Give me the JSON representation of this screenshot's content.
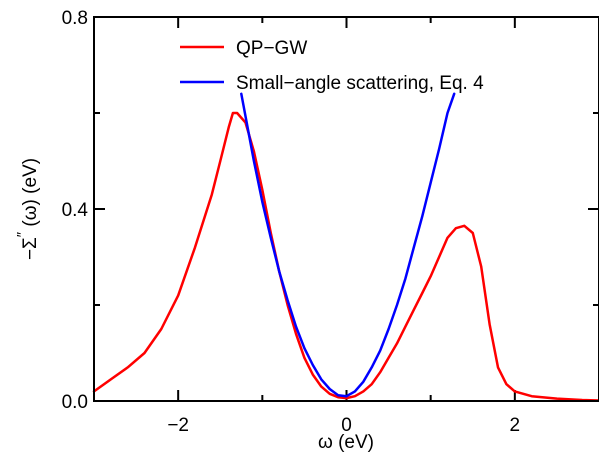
{
  "chart_data": {
    "type": "line",
    "xlabel": "ω (eV)",
    "ylabel": "−Σ″ (ω) (eV)",
    "ylabel_parts": {
      "prefix": "−Σ",
      "prime": "″",
      "suffix": " (ω) (eV)"
    },
    "xlim": [
      -3,
      3
    ],
    "ylim": [
      0,
      0.8
    ],
    "x_ticks": [
      -2,
      0,
      2
    ],
    "x_tick_labels": [
      "−2",
      "0",
      "2"
    ],
    "y_ticks": [
      0.0,
      0.4,
      0.8
    ],
    "y_tick_labels": [
      "0.0",
      "0.4",
      "0.8"
    ],
    "x_minor_ticks": [
      -1,
      1
    ],
    "y_minor_ticks": [
      0.2,
      0.6
    ],
    "grid": false,
    "legend_position": "top-center",
    "series": [
      {
        "name": "QP−GW",
        "color": "#ff0000",
        "x": [
          -3.0,
          -2.8,
          -2.6,
          -2.4,
          -2.2,
          -2.0,
          -1.8,
          -1.6,
          -1.5,
          -1.4,
          -1.35,
          -1.3,
          -1.2,
          -1.1,
          -1.0,
          -0.9,
          -0.8,
          -0.7,
          -0.6,
          -0.5,
          -0.4,
          -0.3,
          -0.2,
          -0.1,
          0.0,
          0.1,
          0.2,
          0.3,
          0.4,
          0.5,
          0.6,
          0.7,
          0.8,
          0.9,
          1.0,
          1.1,
          1.2,
          1.3,
          1.4,
          1.5,
          1.6,
          1.7,
          1.8,
          1.9,
          2.0,
          2.2,
          2.5,
          2.8,
          3.0
        ],
        "y": [
          0.02,
          0.045,
          0.07,
          0.1,
          0.15,
          0.22,
          0.32,
          0.43,
          0.5,
          0.57,
          0.6,
          0.6,
          0.58,
          0.52,
          0.44,
          0.35,
          0.27,
          0.2,
          0.14,
          0.09,
          0.055,
          0.03,
          0.015,
          0.008,
          0.006,
          0.01,
          0.02,
          0.035,
          0.06,
          0.09,
          0.12,
          0.155,
          0.19,
          0.225,
          0.26,
          0.3,
          0.34,
          0.36,
          0.365,
          0.35,
          0.28,
          0.16,
          0.07,
          0.035,
          0.02,
          0.01,
          0.005,
          0.002,
          0.001
        ]
      },
      {
        "name": "Small−angle scattering, Eq. 4",
        "color": "#0000ff",
        "x": [
          -1.25,
          -1.1,
          -1.0,
          -0.9,
          -0.8,
          -0.7,
          -0.6,
          -0.5,
          -0.4,
          -0.3,
          -0.2,
          -0.1,
          0.0,
          0.1,
          0.2,
          0.3,
          0.4,
          0.5,
          0.6,
          0.7,
          0.8,
          0.9,
          1.0,
          1.1,
          1.2,
          1.28
        ],
        "y": [
          0.64,
          0.5,
          0.415,
          0.34,
          0.27,
          0.21,
          0.155,
          0.11,
          0.075,
          0.045,
          0.025,
          0.012,
          0.01,
          0.02,
          0.04,
          0.07,
          0.105,
          0.15,
          0.2,
          0.255,
          0.32,
          0.385,
          0.455,
          0.525,
          0.6,
          0.64
        ]
      }
    ]
  }
}
